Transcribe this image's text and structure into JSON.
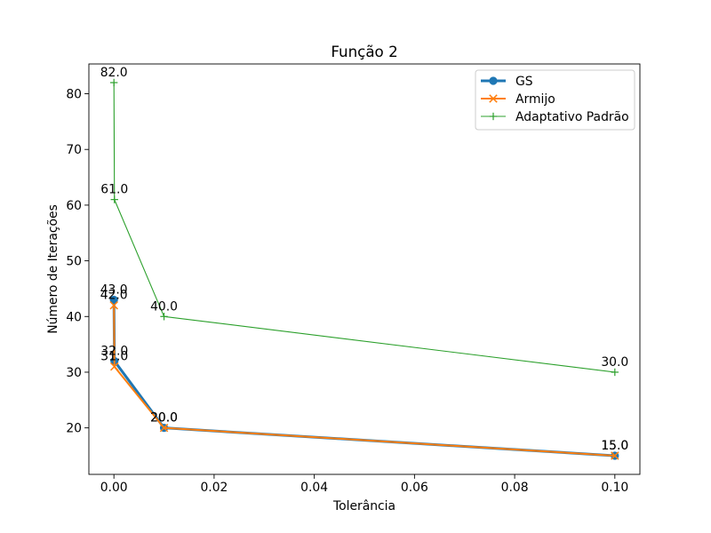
{
  "chart_data": {
    "type": "line",
    "title": "Função 2",
    "xlabel": "Tolerância",
    "ylabel": "Número de Iterações",
    "xlim": [
      -0.005,
      0.105
    ],
    "ylim": [
      11.65,
      85.35
    ],
    "grid": false,
    "legend_position": "top-right",
    "x_ticks": [
      {
        "value": 0.0,
        "label": "0.00"
      },
      {
        "value": 0.02,
        "label": "0.02"
      },
      {
        "value": 0.04,
        "label": "0.04"
      },
      {
        "value": 0.06,
        "label": "0.06"
      },
      {
        "value": 0.08,
        "label": "0.08"
      },
      {
        "value": 0.1,
        "label": "0.10"
      }
    ],
    "y_ticks": [
      {
        "value": 20,
        "label": "20"
      },
      {
        "value": 30,
        "label": "30"
      },
      {
        "value": 40,
        "label": "40"
      },
      {
        "value": 50,
        "label": "50"
      },
      {
        "value": 60,
        "label": "60"
      },
      {
        "value": 70,
        "label": "70"
      },
      {
        "value": 80,
        "label": "80"
      }
    ],
    "series": [
      {
        "name": "GS",
        "color": "#1f77b4",
        "marker": "circle",
        "x": [
          0.1,
          0.01,
          0.0001,
          1e-06
        ],
        "y": [
          15,
          20,
          32,
          43
        ],
        "labels": [
          "15.0",
          "20.0",
          "32.0",
          "43.0"
        ]
      },
      {
        "name": "Armijo",
        "color": "#ff7f0e",
        "marker": "x",
        "x": [
          0.1,
          0.01,
          0.0001,
          1e-06
        ],
        "y": [
          15,
          20,
          31,
          42
        ],
        "labels": [
          "15.0",
          "20.0",
          "31.0",
          "42.0"
        ]
      },
      {
        "name": "Adaptativo Padrão",
        "color": "#2ca02c",
        "marker": "plus",
        "x": [
          0.1,
          0.01,
          0.0001,
          1e-06
        ],
        "y": [
          30,
          40,
          61,
          82
        ],
        "labels": [
          "30.0",
          "40.0",
          "61.0",
          "82.0"
        ]
      }
    ]
  }
}
